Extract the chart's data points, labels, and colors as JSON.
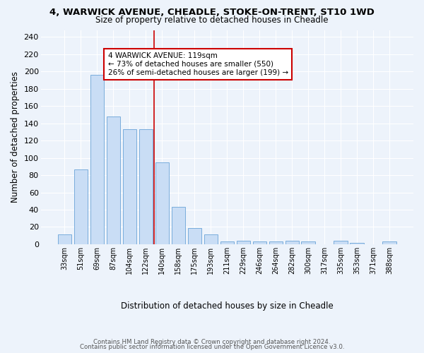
{
  "title1": "4, WARWICK AVENUE, CHEADLE, STOKE-ON-TRENT, ST10 1WD",
  "title2": "Size of property relative to detached houses in Cheadle",
  "xlabel": "Distribution of detached houses by size in Cheadle",
  "ylabel": "Number of detached properties",
  "categories": [
    "33sqm",
    "51sqm",
    "69sqm",
    "87sqm",
    "104sqm",
    "122sqm",
    "140sqm",
    "158sqm",
    "175sqm",
    "193sqm",
    "211sqm",
    "229sqm",
    "246sqm",
    "264sqm",
    "282sqm",
    "300sqm",
    "317sqm",
    "335sqm",
    "353sqm",
    "371sqm",
    "388sqm"
  ],
  "values": [
    11,
    87,
    196,
    148,
    133,
    133,
    95,
    43,
    19,
    11,
    3,
    4,
    3,
    3,
    4,
    3,
    0,
    4,
    2,
    0,
    3
  ],
  "bar_color": "#c9ddf5",
  "bar_edge_color": "#7aaddc",
  "bg_color": "#edf3fb",
  "grid_color": "#ffffff",
  "annotation_text": "4 WARWICK AVENUE: 119sqm\n← 73% of detached houses are smaller (550)\n26% of semi-detached houses are larger (199) →",
  "annotation_box_color": "#ffffff",
  "annotation_box_edge": "#cc0000",
  "vline_color": "#cc0000",
  "vline_x": 5.5,
  "ylim": [
    0,
    248
  ],
  "yticks": [
    0,
    20,
    40,
    60,
    80,
    100,
    120,
    140,
    160,
    180,
    200,
    220,
    240
  ],
  "footer1": "Contains HM Land Registry data © Crown copyright and database right 2024.",
  "footer2": "Contains public sector information licensed under the Open Government Licence v3.0."
}
